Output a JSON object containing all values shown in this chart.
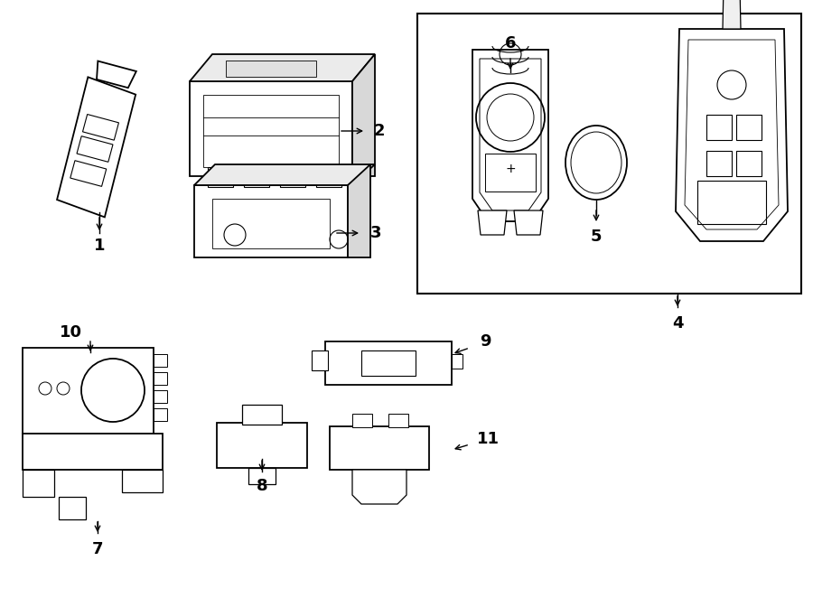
{
  "background_color": "#ffffff",
  "line_color": "#000000",
  "figure_width": 9.0,
  "figure_height": 6.62,
  "dpi": 100,
  "label_fontsize": 13
}
